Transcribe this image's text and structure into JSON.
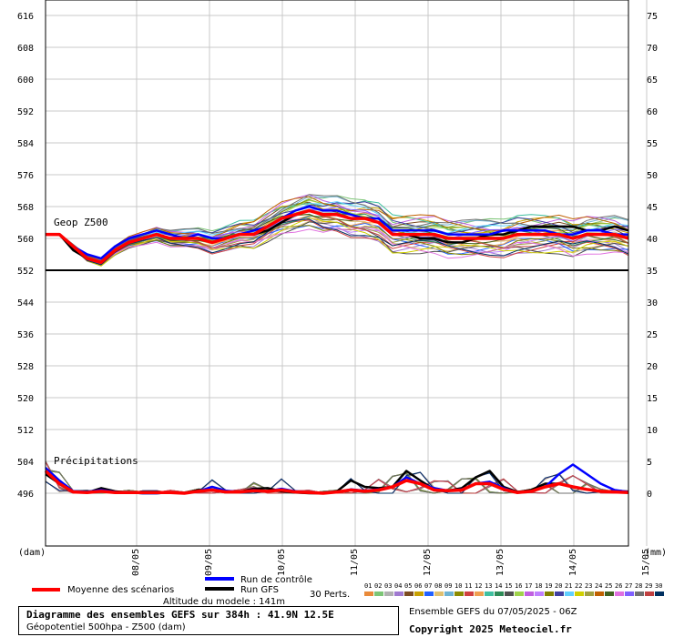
{
  "chart_data": {
    "type": "line",
    "title": "Diagramme des ensembles GEFS sur 384h : 41.9N 12.5E",
    "subtitle": "Géopotentiel 500hpa - Z500 (dam)",
    "altitude": "Altitude du modele : 141m",
    "ensemble_info": "Ensemble GEFS du 07/05/2025 - 06Z",
    "copyright": "Copyright 2025 Meteociel.fr",
    "panel_labels": {
      "geop": "Geop Z500",
      "precip": "Précipitations"
    },
    "left_axis": {
      "unit": "(dam)",
      "ticks": [
        "616",
        "608",
        "600",
        "592",
        "584",
        "576",
        "568",
        "560",
        "552",
        "544",
        "536",
        "528",
        "520",
        "512",
        "504",
        "496"
      ],
      "range": [
        490,
        616
      ]
    },
    "right_axis": {
      "unit": "(mm)",
      "ticks": [
        "75",
        "70",
        "65",
        "60",
        "55",
        "50",
        "45",
        "40",
        "35",
        "30",
        "25",
        "20",
        "15",
        "10",
        "5",
        "0"
      ]
    },
    "x_axis": {
      "ticks": [
        "08/05",
        "09/05",
        "10/05",
        "11/05",
        "12/05",
        "13/05",
        "14/05",
        "15/05"
      ],
      "range_hours": [
        0,
        192
      ]
    },
    "grid": true,
    "legend": {
      "mean_label": "Moyenne des scénarios",
      "control_label": "Run de contrôle",
      "gfs_label": "Run GFS",
      "perts_label": "30 Perts.",
      "pert_numbers": [
        "01",
        "02",
        "03",
        "04",
        "05",
        "06",
        "07",
        "08",
        "09",
        "10",
        "11",
        "12",
        "13",
        "14",
        "15",
        "16",
        "17",
        "18",
        "19",
        "20",
        "21",
        "22",
        "23",
        "24",
        "25",
        "26",
        "27",
        "28",
        "29",
        "30"
      ],
      "pert_colors": [
        "#e98a3a",
        "#7cc576",
        "#b0b0b0",
        "#a07ad0",
        "#7b4b20",
        "#c8a000",
        "#2060ff",
        "#e0c070",
        "#6fb3d2",
        "#8b8b00",
        "#d04040",
        "#f0a050",
        "#40c0a0",
        "#2e8b57",
        "#505050",
        "#9fd34a",
        "#c060e0",
        "#c080ff",
        "#808000",
        "#4040a0",
        "#60d0ff",
        "#d0d000",
        "#a0a040",
        "#c06000",
        "#406020",
        "#e070e0",
        "#8060ff",
        "#707070",
        "#c04040",
        "#003060"
      ]
    },
    "series": [
      {
        "name": "Moyenne des scénarios",
        "color": "#ff0000",
        "z500": [
          561,
          561,
          558,
          555,
          554,
          557,
          559,
          560,
          561,
          560,
          560,
          560,
          559,
          560,
          561,
          561,
          563,
          565,
          566,
          567,
          566,
          566,
          565,
          565,
          564,
          561,
          561,
          561,
          561,
          560,
          560,
          560,
          560,
          560,
          561,
          561,
          561,
          561,
          560,
          561,
          561,
          561,
          560
        ],
        "precip": [
          3.5,
          1.5,
          0.2,
          0.1,
          0.3,
          0.1,
          0.1,
          0.1,
          0.1,
          0.1,
          0,
          0.3,
          0.5,
          0.2,
          0.2,
          0.4,
          0.3,
          0.5,
          0.2,
          0.1,
          0,
          0.2,
          0.5,
          0.3,
          0.5,
          1,
          2,
          1.5,
          0.5,
          0.4,
          0.5,
          1.5,
          1.5,
          0.6,
          0.1,
          0.3,
          1,
          1.5,
          1,
          0.6,
          0.3,
          0.2,
          0.1
        ]
      },
      {
        "name": "Run de contrôle",
        "color": "#0000ff",
        "z500": [
          561,
          561,
          558,
          556,
          555,
          558,
          560,
          561,
          562,
          561,
          560,
          561,
          560,
          560,
          561,
          562,
          563,
          565,
          567,
          568,
          567,
          567,
          566,
          565,
          565,
          562,
          562,
          562,
          562,
          561,
          561,
          561,
          561,
          562,
          562,
          562,
          562,
          561,
          561,
          562,
          562,
          561,
          561
        ],
        "precip": [
          4,
          2,
          0.3,
          0.2,
          0.5,
          0.2,
          0.1,
          0,
          0,
          0.1,
          0,
          0.3,
          1,
          0.4,
          0.2,
          0.5,
          0.3,
          0.7,
          0.3,
          0.1,
          0,
          0.2,
          0.6,
          0.4,
          0.6,
          1,
          2.5,
          1.5,
          0.8,
          0.4,
          0.6,
          1.5,
          1.8,
          0.8,
          0.1,
          0.3,
          1,
          3,
          4.5,
          3,
          1.5,
          0.5,
          0.2
        ]
      },
      {
        "name": "Run GFS",
        "color": "#000000",
        "z500": [
          561,
          561,
          557,
          555,
          554,
          557,
          559,
          560,
          561,
          560,
          560,
          560,
          559,
          560,
          561,
          561,
          562,
          564,
          566,
          567,
          566,
          566,
          565,
          565,
          564,
          561,
          561,
          560,
          560,
          559,
          559,
          560,
          561,
          561,
          562,
          563,
          563,
          563,
          563,
          562,
          562,
          563,
          562
        ],
        "precip": [
          3,
          1.5,
          0.2,
          0.1,
          0.8,
          0.3,
          0.1,
          0,
          0,
          0.1,
          0,
          0.5,
          0.4,
          0.3,
          0.2,
          0.7,
          0.8,
          0.3,
          0.1,
          0,
          0,
          0.3,
          2,
          1,
          0.8,
          1,
          3.5,
          2,
          0.6,
          0.4,
          0.8,
          2.5,
          3.5,
          1,
          0.2,
          0.5,
          1.5,
          1.5,
          1,
          0.6,
          0.3,
          0.3,
          0.2
        ]
      }
    ]
  }
}
